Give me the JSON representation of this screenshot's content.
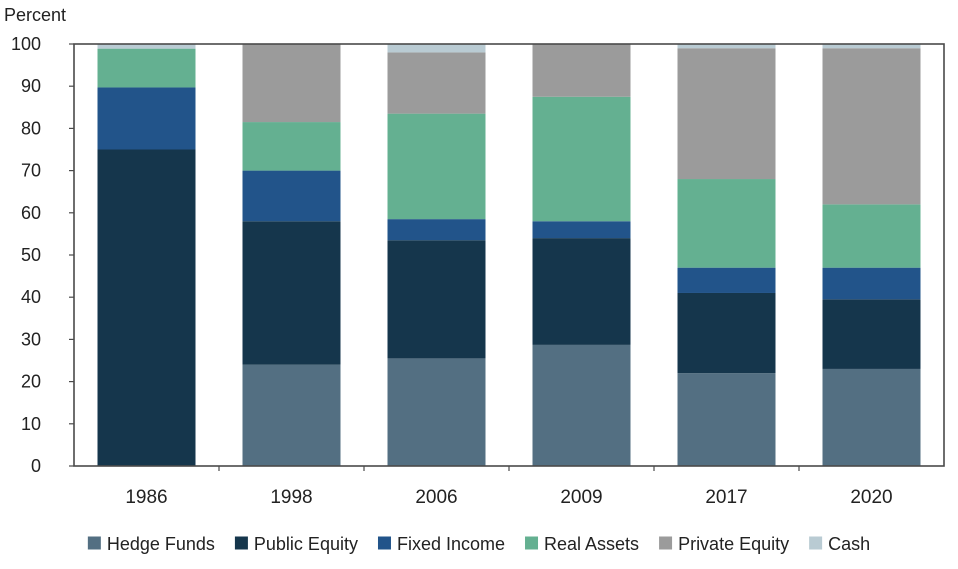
{
  "chart_data": {
    "type": "bar",
    "stacked": true,
    "ylabel": "Percent",
    "ylim": [
      0,
      100
    ],
    "yticks": [
      0,
      10,
      20,
      30,
      40,
      50,
      60,
      70,
      80,
      90,
      100
    ],
    "categories": [
      "1986",
      "1998",
      "2006",
      "2009",
      "2017",
      "2020"
    ],
    "series": [
      {
        "name": "Hedge Funds",
        "color": "#536f82",
        "values": [
          0,
          24,
          25.5,
          28.7,
          22,
          23
        ]
      },
      {
        "name": "Public Equity",
        "color": "#15364c",
        "values": [
          75,
          34,
          28,
          25.3,
          19,
          16.5
        ]
      },
      {
        "name": "Fixed Income",
        "color": "#22548a",
        "values": [
          14.7,
          12,
          5,
          4,
          6,
          7.5
        ]
      },
      {
        "name": "Real Assets",
        "color": "#64b091",
        "values": [
          9.2,
          11.5,
          25,
          29.5,
          21,
          15
        ]
      },
      {
        "name": "Private Equity",
        "color": "#9b9b9b",
        "values": [
          0,
          18.5,
          14.5,
          12.5,
          31,
          37
        ]
      },
      {
        "name": "Cash",
        "color": "#b9cbd3",
        "values": [
          1.1,
          0,
          2,
          0,
          1,
          1
        ]
      }
    ],
    "grid": false,
    "legend_position": "bottom"
  }
}
